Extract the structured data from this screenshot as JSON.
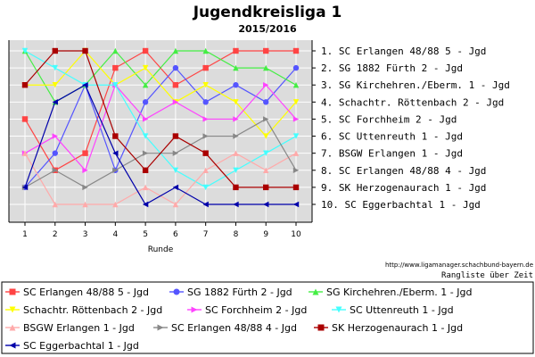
{
  "chart_data": {
    "type": "line",
    "title": "Jugendkreisliga 1",
    "subtitle": "2015/2016",
    "xlabel": "Runde",
    "x": [
      1,
      2,
      3,
      4,
      5,
      6,
      7,
      8,
      9,
      10
    ],
    "ylim": [
      0.5,
      10.5
    ],
    "y_inverted": true,
    "grid": true,
    "legend_position": "bottom",
    "rank_labels": [
      "1. SC Erlangen 48/88 5 - Jgd",
      "2. SG 1882 Fürth 2 - Jgd",
      "3. SG Kirchehren./Eberm. 1 - Jgd",
      "4. Schachtr. Röttenbach 2 - Jgd",
      "5. SC Forchheim 2 - Jgd",
      "6. SC Uttenreuth 1 - Jgd",
      "7. BSGW Erlangen 1 - Jgd",
      "8. SC Erlangen 48/88 4 - Jgd",
      "9. SK Herzogenaurach 1 - Jgd",
      "10. SC Eggerbachtal 1 - Jgd"
    ],
    "series": [
      {
        "name": "SC Erlangen 48/88 5 - Jgd",
        "color": "#ff4444",
        "marker": "square",
        "values": [
          5,
          8,
          7,
          2,
          1,
          3,
          2,
          1,
          1,
          1
        ]
      },
      {
        "name": "SG 1882 Fürth 2 - Jgd",
        "color": "#5555ff",
        "marker": "circle",
        "values": [
          9,
          7,
          3,
          8,
          4,
          2,
          4,
          3,
          4,
          2
        ]
      },
      {
        "name": "SG Kirchehren./Eberm. 1 - Jgd",
        "color": "#44ee44",
        "marker": "triangle-up",
        "values": [
          1,
          4,
          3,
          1,
          3,
          1,
          1,
          2,
          2,
          3
        ]
      },
      {
        "name": "Schachtr. Röttenbach 2 - Jgd",
        "color": "#ffff00",
        "marker": "triangle-down",
        "values": [
          3,
          3,
          1,
          3,
          2,
          4,
          3,
          4,
          6,
          4
        ]
      },
      {
        "name": "SC Forchheim 2 - Jgd",
        "color": "#ff44ff",
        "marker": "triangle-right",
        "values": [
          7,
          6,
          8,
          3,
          5,
          4,
          5,
          5,
          3,
          5
        ]
      },
      {
        "name": "SC Uttenreuth 1 - Jgd",
        "color": "#44ffff",
        "marker": "triangle-down",
        "values": [
          1,
          2,
          3,
          3,
          6,
          8,
          9,
          8,
          7,
          6
        ]
      },
      {
        "name": "BSGW Erlangen 1 - Jgd",
        "color": "#ffaaaa",
        "marker": "triangle-up",
        "values": [
          7,
          10,
          10,
          10,
          9,
          10,
          8,
          7,
          8,
          7
        ]
      },
      {
        "name": "SC Erlangen 48/88 4 - Jgd",
        "color": "#888888",
        "marker": "triangle-right",
        "values": [
          9,
          8,
          9,
          8,
          7,
          7,
          6,
          6,
          5,
          8
        ]
      },
      {
        "name": "SK Herzogenaurach 1 - Jgd",
        "color": "#aa0000",
        "marker": "square",
        "values": [
          3,
          1,
          1,
          6,
          8,
          6,
          7,
          9,
          9,
          9
        ]
      },
      {
        "name": "SC Eggerbachtal 1 - Jgd",
        "color": "#0000aa",
        "marker": "triangle-left",
        "values": [
          9,
          4,
          3,
          7,
          10,
          9,
          10,
          10,
          10,
          10
        ]
      }
    ]
  },
  "footer": {
    "url": "http://www.ligamanager.schachbund-bayern.de",
    "caption": "Rangliste über Zeit"
  }
}
